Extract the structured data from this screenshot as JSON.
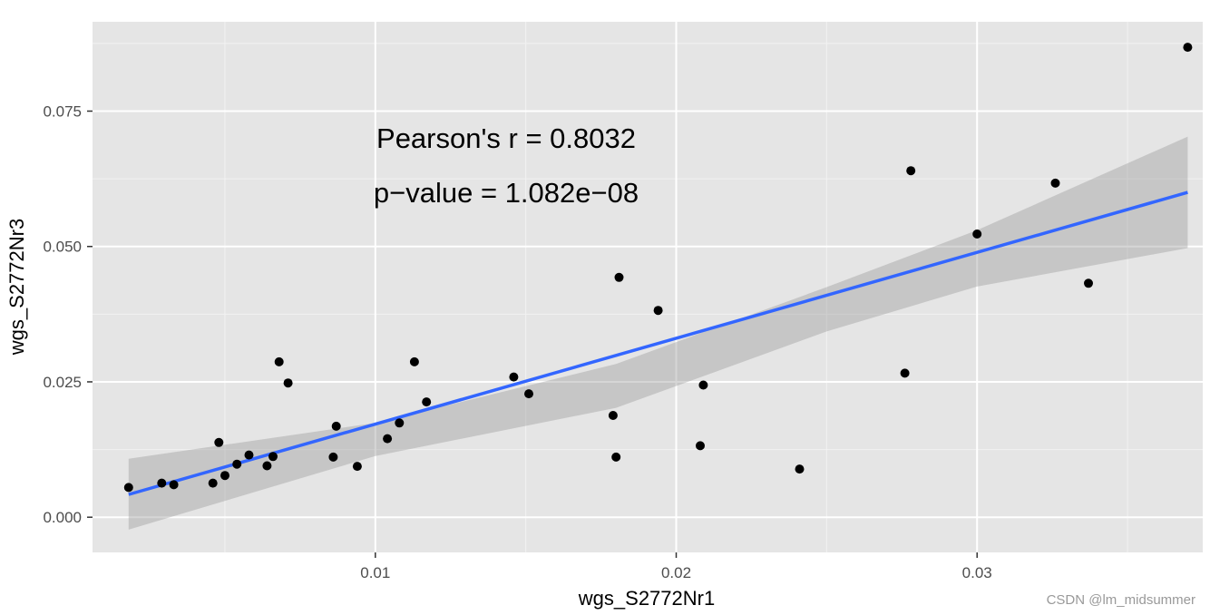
{
  "chart_data": {
    "type": "scatter",
    "xlabel": "wgs_S2772Nr1",
    "ylabel": "wgs_S2772Nr3",
    "xlim": [
      0.0006,
      0.0375
    ],
    "ylim": [
      -0.0065,
      0.0915
    ],
    "x_ticks": [
      {
        "value": 0.01,
        "label": "0.01"
      },
      {
        "value": 0.02,
        "label": "0.02"
      },
      {
        "value": 0.03,
        "label": "0.03"
      }
    ],
    "y_ticks": [
      {
        "value": 0.0,
        "label": "0.000"
      },
      {
        "value": 0.025,
        "label": "0.025"
      },
      {
        "value": 0.05,
        "label": "0.050"
      },
      {
        "value": 0.075,
        "label": "0.075"
      }
    ],
    "grid": true,
    "background": "#e5e5e5",
    "point_color": "#000000",
    "line_color": "#3366ff",
    "band_color": "#c8c8c8",
    "points": [
      {
        "x": 0.0018,
        "y": 0.0055
      },
      {
        "x": 0.0029,
        "y": 0.0063
      },
      {
        "x": 0.0033,
        "y": 0.006
      },
      {
        "x": 0.0046,
        "y": 0.0063
      },
      {
        "x": 0.0048,
        "y": 0.0138
      },
      {
        "x": 0.005,
        "y": 0.0077
      },
      {
        "x": 0.0054,
        "y": 0.0098
      },
      {
        "x": 0.0058,
        "y": 0.0115
      },
      {
        "x": 0.0064,
        "y": 0.0095
      },
      {
        "x": 0.0066,
        "y": 0.0112
      },
      {
        "x": 0.0068,
        "y": 0.0287
      },
      {
        "x": 0.0071,
        "y": 0.0248
      },
      {
        "x": 0.0086,
        "y": 0.0111
      },
      {
        "x": 0.0087,
        "y": 0.0168
      },
      {
        "x": 0.0094,
        "y": 0.0094
      },
      {
        "x": 0.0104,
        "y": 0.0145
      },
      {
        "x": 0.0108,
        "y": 0.0174
      },
      {
        "x": 0.0113,
        "y": 0.0287
      },
      {
        "x": 0.0117,
        "y": 0.0213
      },
      {
        "x": 0.0146,
        "y": 0.0259
      },
      {
        "x": 0.0151,
        "y": 0.0228
      },
      {
        "x": 0.0179,
        "y": 0.0188
      },
      {
        "x": 0.018,
        "y": 0.0111
      },
      {
        "x": 0.0181,
        "y": 0.0443
      },
      {
        "x": 0.0194,
        "y": 0.0382
      },
      {
        "x": 0.0208,
        "y": 0.0132
      },
      {
        "x": 0.0209,
        "y": 0.0244
      },
      {
        "x": 0.0241,
        "y": 0.0089
      },
      {
        "x": 0.0276,
        "y": 0.0266
      },
      {
        "x": 0.0278,
        "y": 0.064
      },
      {
        "x": 0.03,
        "y": 0.0523
      },
      {
        "x": 0.0326,
        "y": 0.0617
      },
      {
        "x": 0.0337,
        "y": 0.0432
      },
      {
        "x": 0.037,
        "y": 0.0868
      }
    ],
    "fit_line": {
      "x": [
        0.0018,
        0.037
      ],
      "y": [
        0.0042,
        0.06
      ]
    },
    "confidence_band": {
      "x": [
        0.0018,
        0.01,
        0.018,
        0.025,
        0.03,
        0.037
      ],
      "upper": [
        0.0108,
        0.0174,
        0.0283,
        0.0425,
        0.053,
        0.0703
      ],
      "lower": [
        -0.0023,
        0.0113,
        0.0202,
        0.0343,
        0.0426,
        0.0497
      ]
    },
    "annotations": [
      "Pearson's r = 0.8032",
      "p−value = 1.082e−08"
    ]
  },
  "watermark": "CSDN @lm_midsummer"
}
